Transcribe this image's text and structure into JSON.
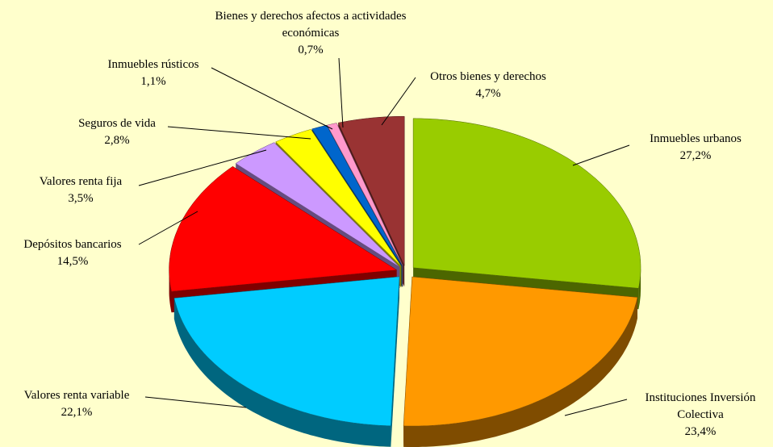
{
  "chart_data": {
    "type": "pie3d",
    "categories": [
      "Inmuebles urbanos",
      "Instituciones Inversión Colectiva",
      "Valores renta variable",
      "Depósitos bancarios",
      "Valores renta fija",
      "Seguros de vida",
      "Inmuebles rústicos",
      "Bienes y derechos afectos a actividades económicas",
      "Otros bienes y derechos"
    ],
    "values": [
      27.2,
      23.4,
      22.1,
      14.5,
      3.5,
      2.8,
      1.1,
      0.7,
      4.7
    ],
    "value_labels": [
      "27,2%",
      "23,4%",
      "22,1%",
      "14,5%",
      "3,5%",
      "2,8%",
      "1,1%",
      "0,7%",
      "4,7%"
    ],
    "colors": [
      "#99cc00",
      "#ff9900",
      "#00ccff",
      "#ff0000",
      "#cc99ff",
      "#ffff00",
      "#0066cc",
      "#ff99cc",
      "#993333"
    ]
  }
}
